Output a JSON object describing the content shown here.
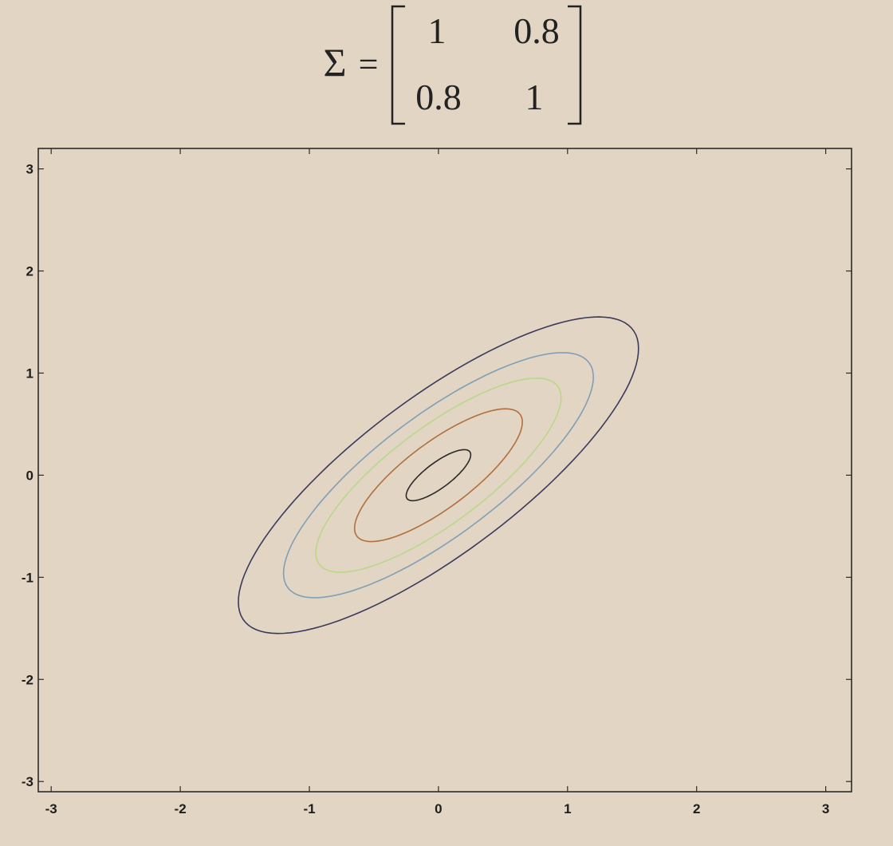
{
  "formula": {
    "symbol": "Σ",
    "equals": "=",
    "matrix": [
      [
        "1",
        "0.8"
      ],
      [
        "0.8",
        "1"
      ]
    ]
  },
  "chart_data": {
    "type": "contour",
    "title": "",
    "xlabel": "",
    "ylabel": "",
    "xlim": [
      -3.1,
      3.2
    ],
    "ylim": [
      -3.1,
      3.2
    ],
    "xticks": [
      "-3",
      "-2",
      "-1",
      "0",
      "1",
      "2",
      "3"
    ],
    "yticks": [
      "3",
      "2",
      "1",
      "0",
      "-1",
      "-2",
      "-3"
    ],
    "distribution": {
      "mean": [
        0,
        0
      ],
      "covariance": [
        [
          1,
          0.8
        ],
        [
          0.8,
          1
        ]
      ]
    },
    "contours": [
      {
        "mahalanobis_distance": 0.25,
        "color": "#2a2a2a"
      },
      {
        "mahalanobis_distance": 0.65,
        "color": "#b06f3c"
      },
      {
        "mahalanobis_distance": 0.95,
        "color": "#b8d88a"
      },
      {
        "mahalanobis_distance": 1.2,
        "color": "#7f9fb6"
      },
      {
        "mahalanobis_distance": 1.55,
        "color": "#3a3a5c"
      }
    ],
    "grid": false,
    "legend": "none"
  }
}
